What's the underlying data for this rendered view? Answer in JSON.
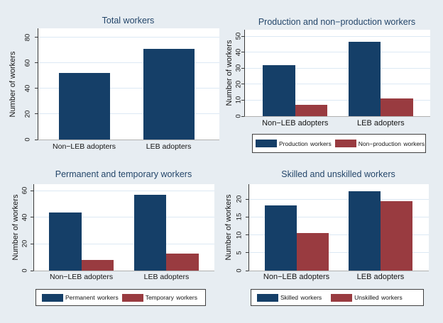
{
  "colors": {
    "background": "#e7edf2",
    "plot_background": "#ffffff",
    "gridline": "#dce9f4",
    "bar_navy": "#153f68",
    "bar_maroon": "#993b40",
    "title_text": "#24466a",
    "axis_text": "#141414"
  },
  "chart_data": [
    {
      "type": "bar",
      "title": "Total workers",
      "ylabel": "Number of workers",
      "categories": [
        "Non−LEB adopters",
        "LEB adopters"
      ],
      "yticks": [
        0,
        20,
        40,
        60,
        80
      ],
      "ylim": [
        0,
        87
      ],
      "grid": "horizontal",
      "legend": "none",
      "series": [
        {
          "name": "Total workers",
          "color": "#153f68",
          "values": [
            52,
            71
          ]
        }
      ]
    },
    {
      "type": "bar",
      "title": "Production and non−production workers",
      "ylabel": "Number of workers",
      "categories": [
        "Non−LEB adopters",
        "LEB adopters"
      ],
      "yticks": [
        0,
        10,
        20,
        30,
        40,
        50
      ],
      "ylim": [
        0,
        54
      ],
      "grid": "horizontal",
      "legend": "below",
      "series": [
        {
          "name": "Production workers",
          "color": "#153f68",
          "values": [
            32,
            46.5
          ]
        },
        {
          "name": "Non−production workers",
          "color": "#993b40",
          "values": [
            7,
            11
          ]
        }
      ]
    },
    {
      "type": "bar",
      "title": "Permanent and temporary workers",
      "ylabel": "Number of workers",
      "categories": [
        "Non−LEB adopters",
        "LEB adopters"
      ],
      "yticks": [
        0,
        20,
        40,
        60
      ],
      "ylim": [
        0,
        65
      ],
      "grid": "horizontal",
      "legend": "below",
      "series": [
        {
          "name": "Permanent workers",
          "color": "#153f68",
          "values": [
            43.5,
            57
          ]
        },
        {
          "name": "Temporary workers",
          "color": "#993b40",
          "values": [
            8,
            13
          ]
        }
      ]
    },
    {
      "type": "bar",
      "title": "Skilled and unskilled workers",
      "ylabel": "Number of workers",
      "categories": [
        "Non−LEB adopters",
        "LEB adopters"
      ],
      "yticks": [
        0,
        5,
        10,
        15,
        20
      ],
      "ylim": [
        0,
        24.2
      ],
      "grid": "horizontal",
      "legend": "below",
      "series": [
        {
          "name": "Skilled workers",
          "color": "#153f68",
          "values": [
            18.3,
            22.2
          ]
        },
        {
          "name": "Unskilled workers",
          "color": "#993b40",
          "values": [
            10.5,
            19.4
          ]
        }
      ]
    }
  ]
}
